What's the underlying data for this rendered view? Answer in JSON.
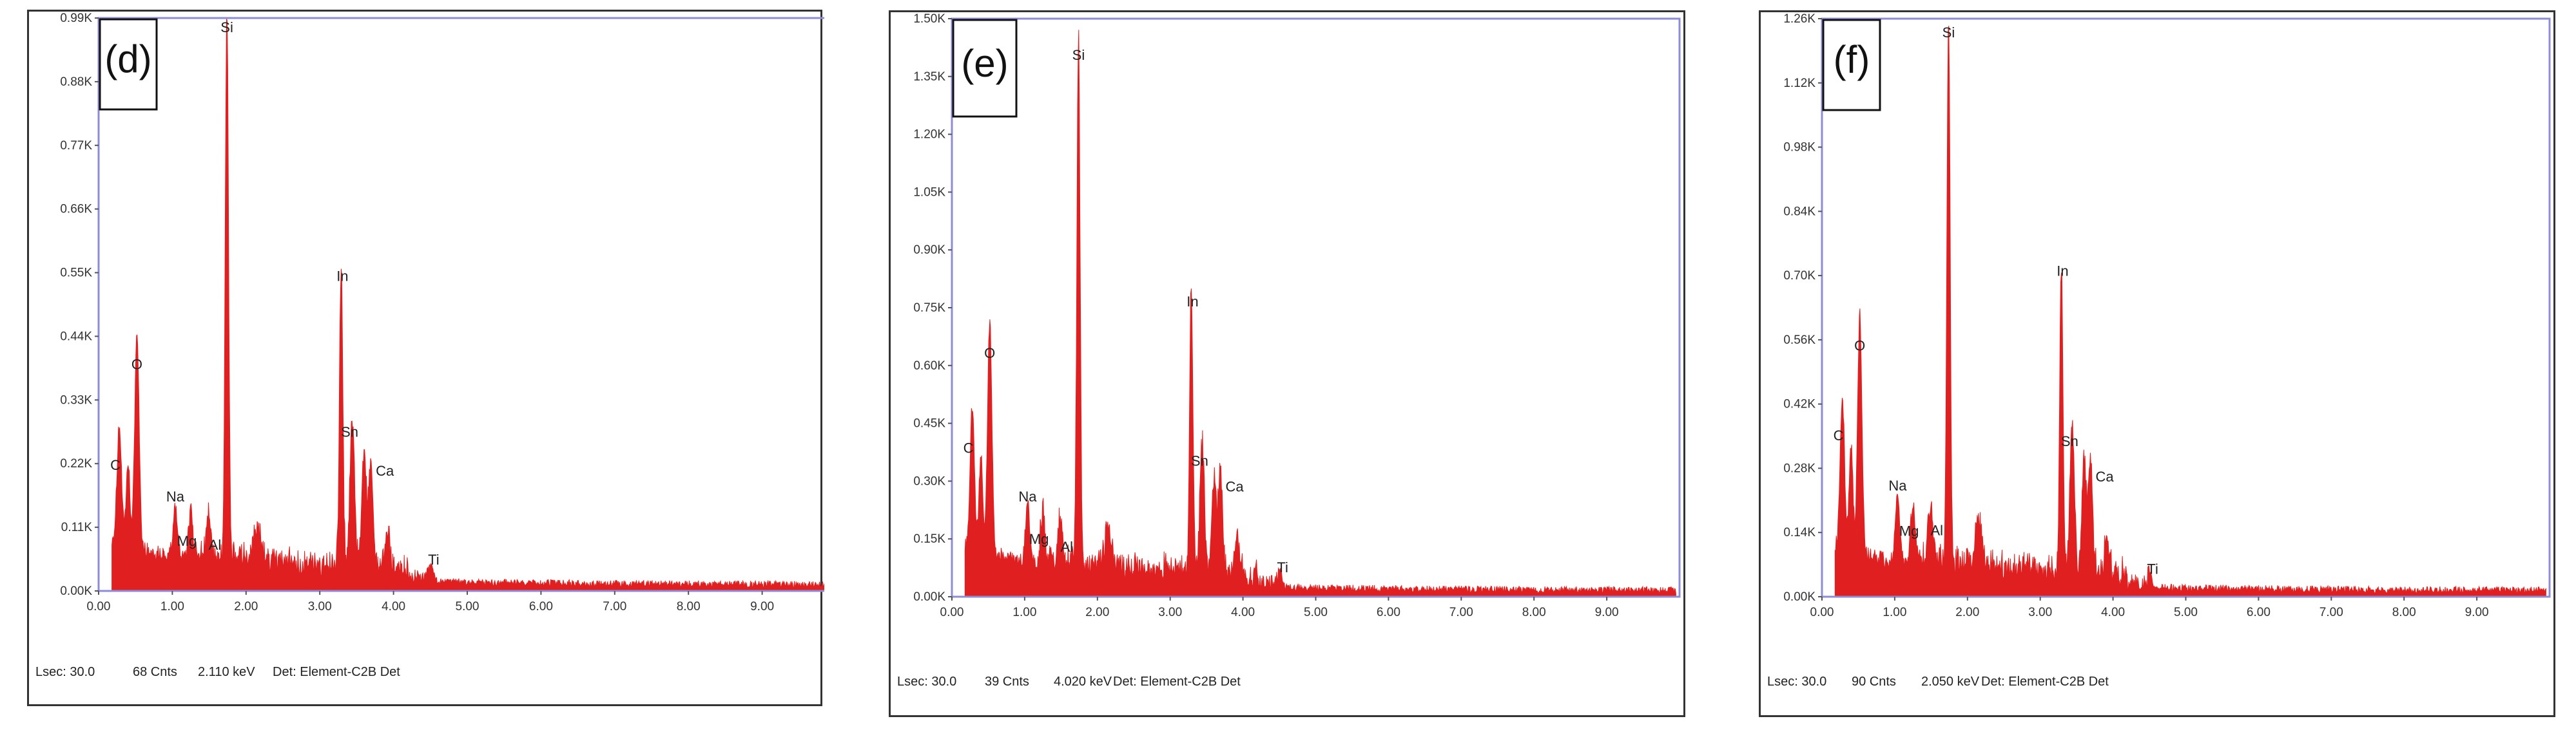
{
  "colors": {
    "spectrum": "#e02020",
    "frame": "#8c8cd8",
    "background": "#ffffff"
  },
  "chart_data": [
    {
      "type": "area",
      "panel_label": "(d)",
      "ylim": [
        0,
        0.99
      ],
      "yticks": [
        "0.00K",
        "0.11K",
        "0.22K",
        "0.33K",
        "0.44K",
        "0.55K",
        "0.66K",
        "0.77K",
        "0.88K",
        "0.99K"
      ],
      "xlim": [
        0,
        10
      ],
      "xticks": [
        "0.00",
        "1.00",
        "2.00",
        "3.00",
        "4.00",
        "5.00",
        "6.00",
        "7.00",
        "8.00",
        "9.00"
      ],
      "peaks": [
        {
          "label": "C",
          "x": 0.28,
          "y": 0.2
        },
        {
          "label": "O",
          "x": 0.52,
          "y": 0.37
        },
        {
          "label": "Na",
          "x": 1.04,
          "y": 0.09
        },
        {
          "label": "Mg",
          "x": 1.25,
          "y": 0.06
        },
        {
          "label": "Al",
          "x": 1.49,
          "y": 0.06
        },
        {
          "label": "Si",
          "x": 1.74,
          "y": 0.95
        },
        {
          "label": "In",
          "x": 3.29,
          "y": 0.52
        },
        {
          "label": "Sn",
          "x": 3.44,
          "y": 0.26
        },
        {
          "label": "Ca",
          "x": 3.69,
          "y": 0.19
        },
        {
          "label": "Ti",
          "x": 4.51,
          "y": 0.03
        }
      ],
      "footer": {
        "lsec": "Lsec: 30.0",
        "cnts": "68 Cnts",
        "kev": "2.110 keV",
        "det": "Det: Element-C2B Det"
      }
    },
    {
      "type": "area",
      "panel_label": "(e)",
      "ylim": [
        0,
        1.5
      ],
      "yticks": [
        "0.00K",
        "0.15K",
        "0.30K",
        "0.45K",
        "0.60K",
        "0.75K",
        "0.90K",
        "1.05K",
        "1.20K",
        "1.35K",
        "1.50K"
      ],
      "xlim": [
        0,
        10
      ],
      "xticks": [
        "0.00",
        "1.00",
        "2.00",
        "3.00",
        "4.00",
        "5.00",
        "6.00",
        "7.00",
        "8.00",
        "9.00"
      ],
      "peaks": [
        {
          "label": "C",
          "x": 0.28,
          "y": 0.36
        },
        {
          "label": "O",
          "x": 0.52,
          "y": 0.6
        },
        {
          "label": "Na",
          "x": 1.04,
          "y": 0.15
        },
        {
          "label": "Mg",
          "x": 1.25,
          "y": 0.11
        },
        {
          "label": "Al",
          "x": 1.49,
          "y": 0.1
        },
        {
          "label": "Si",
          "x": 1.74,
          "y": 1.37
        },
        {
          "label": "In",
          "x": 3.29,
          "y": 0.73
        },
        {
          "label": "Sn",
          "x": 3.44,
          "y": 0.33
        },
        {
          "label": "Ca",
          "x": 3.69,
          "y": 0.26
        },
        {
          "label": "Ti",
          "x": 4.51,
          "y": 0.04
        }
      ],
      "footer": {
        "lsec": "Lsec: 30.0",
        "cnts": "39 Cnts",
        "kev": "4.020 keV",
        "det": "Det: Element-C2B Det"
      }
    },
    {
      "type": "area",
      "panel_label": "(f)",
      "ylim": [
        0,
        1.26
      ],
      "yticks": [
        "0.00K",
        "0.14K",
        "0.28K",
        "0.42K",
        "0.56K",
        "0.70K",
        "0.84K",
        "0.98K",
        "1.12K",
        "1.26K"
      ],
      "xlim": [
        0,
        10
      ],
      "xticks": [
        "0.00",
        "1.00",
        "2.00",
        "3.00",
        "4.00",
        "5.00",
        "6.00",
        "7.00",
        "8.00",
        "9.00"
      ],
      "peaks": [
        {
          "label": "C",
          "x": 0.28,
          "y": 0.33
        },
        {
          "label": "O",
          "x": 0.52,
          "y": 0.52
        },
        {
          "label": "Na",
          "x": 1.04,
          "y": 0.15
        },
        {
          "label": "Mg",
          "x": 1.25,
          "y": 0.11
        },
        {
          "label": "Al",
          "x": 1.49,
          "y": 0.12
        },
        {
          "label": "Si",
          "x": 1.74,
          "y": 1.2
        },
        {
          "label": "In",
          "x": 3.29,
          "y": 0.68
        },
        {
          "label": "Sn",
          "x": 3.44,
          "y": 0.32
        },
        {
          "label": "Ca",
          "x": 3.69,
          "y": 0.24
        },
        {
          "label": "Ti",
          "x": 4.51,
          "y": 0.03
        }
      ],
      "footer": {
        "lsec": "Lsec: 30.0",
        "cnts": "90 Cnts",
        "kev": "2.050 keV",
        "det": "Det: Element-C2B Det"
      }
    }
  ]
}
